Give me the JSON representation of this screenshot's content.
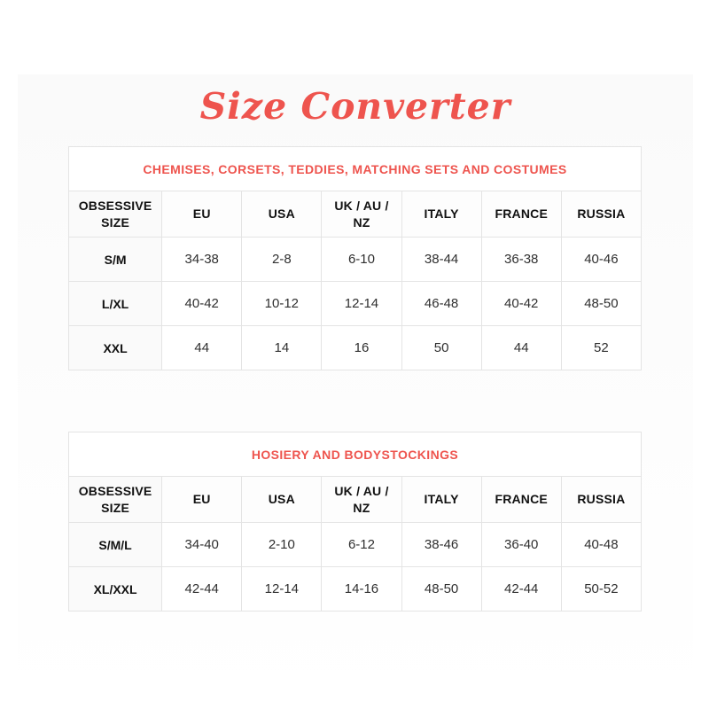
{
  "page": {
    "title": "Size Converter"
  },
  "colors": {
    "accent": "#ee544e",
    "table_border": "#e4e4e4",
    "header_text": "#111111",
    "cell_text": "#2f2f2f",
    "first_column_bg": "#fafafa"
  },
  "columns": [
    "OBSESSIVE SIZE",
    "EU",
    "USA",
    "UK / AU / NZ",
    "ITALY",
    "FRANCE",
    "RUSSIA"
  ],
  "tables": [
    {
      "caption": "CHEMISES, CORSETS, TEDDIES, MATCHING SETS AND COSTUMES",
      "rows": [
        [
          "S/M",
          "34-38",
          "2-8",
          "6-10",
          "38-44",
          "36-38",
          "40-46"
        ],
        [
          "L/XL",
          "40-42",
          "10-12",
          "12-14",
          "46-48",
          "40-42",
          "48-50"
        ],
        [
          "XXL",
          "44",
          "14",
          "16",
          "50",
          "44",
          "52"
        ]
      ]
    },
    {
      "caption": "HOSIERY AND BODYSTOCKINGS",
      "rows": [
        [
          "S/M/L",
          "34-40",
          "2-10",
          "6-12",
          "38-46",
          "36-40",
          "40-48"
        ],
        [
          "XL/XXL",
          "42-44",
          "12-14",
          "14-16",
          "48-50",
          "42-44",
          "50-52"
        ]
      ]
    }
  ]
}
